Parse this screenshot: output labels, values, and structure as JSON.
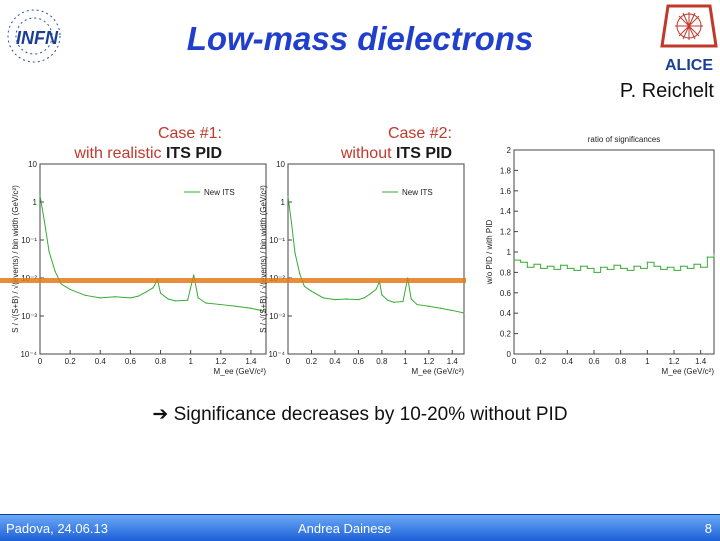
{
  "header": {
    "title": "Low-mass dielectrons",
    "author": "P. Reichelt",
    "infn_logo_text": "INFN",
    "alice_logo_text": "ALICE"
  },
  "colors": {
    "title": "#1f3fcc",
    "highlight": "#e07a1a",
    "curve": "#3aaa35",
    "footer": "#1d5fd8"
  },
  "case1": {
    "line1": "Case #1:",
    "line2_prefix": "with realistic ",
    "line2_bold": "ITS PID"
  },
  "case2": {
    "line1": "Case #2:",
    "line2_prefix": "without ",
    "line2_bold": "ITS PID"
  },
  "chart_data": [
    {
      "type": "line",
      "title": "",
      "ylabel": "S / √(S+B) / √(events) / bin width (GeV/c²)",
      "xlabel": "M_ee (GeV/c²)",
      "legend": "New ITS",
      "yscale": "log",
      "ylim": [
        0.0001,
        10
      ],
      "xlim": [
        0,
        1.5
      ],
      "ytick_labels": [
        "10",
        "1",
        "10⁻¹",
        "10⁻²",
        "10⁻³",
        "10⁻⁴"
      ],
      "xtick_labels": [
        "0",
        "0.2",
        "0.4",
        "0.6",
        "0.8",
        "1",
        "1.2",
        "1.4"
      ],
      "x": [
        0,
        0.03,
        0.06,
        0.1,
        0.14,
        0.2,
        0.3,
        0.4,
        0.5,
        0.6,
        0.65,
        0.7,
        0.75,
        0.78,
        0.8,
        0.85,
        0.9,
        0.98,
        1.02,
        1.05,
        1.1,
        1.2,
        1.3,
        1.4,
        1.5
      ],
      "values": [
        1.5,
        0.3,
        0.05,
        0.015,
        0.007,
        0.005,
        0.0035,
        0.003,
        0.0032,
        0.003,
        0.0033,
        0.0042,
        0.0055,
        0.009,
        0.004,
        0.0028,
        0.0025,
        0.0026,
        0.012,
        0.003,
        0.0022,
        0.002,
        0.0018,
        0.0016,
        0.0013
      ]
    },
    {
      "type": "line",
      "title": "",
      "ylabel": "S / √(S+B) / √(events) / bin width (GeV/c²)",
      "xlabel": "M_ee (GeV/c²)",
      "legend": "New ITS",
      "yscale": "log",
      "ylim": [
        0.0001,
        10
      ],
      "xlim": [
        0,
        1.5
      ],
      "ytick_labels": [
        "10",
        "1",
        "10⁻¹",
        "10⁻²",
        "10⁻³",
        "10⁻⁴"
      ],
      "xtick_labels": [
        "0",
        "0.2",
        "0.4",
        "0.6",
        "0.8",
        "1",
        "1.2",
        "1.4"
      ],
      "x": [
        0,
        0.03,
        0.06,
        0.1,
        0.14,
        0.2,
        0.3,
        0.4,
        0.5,
        0.6,
        0.65,
        0.7,
        0.75,
        0.78,
        0.8,
        0.85,
        0.9,
        0.98,
        1.02,
        1.05,
        1.1,
        1.2,
        1.3,
        1.4,
        1.5
      ],
      "values": [
        1.4,
        0.28,
        0.045,
        0.013,
        0.006,
        0.0045,
        0.003,
        0.0027,
        0.0028,
        0.0027,
        0.003,
        0.0038,
        0.005,
        0.008,
        0.0036,
        0.0026,
        0.0023,
        0.0024,
        0.01,
        0.0028,
        0.002,
        0.0018,
        0.0016,
        0.0014,
        0.0012
      ]
    },
    {
      "type": "line",
      "title": "ratio of significances",
      "ylabel": "w/o PID / with PID",
      "xlabel": "M_ee (GeV/c²)",
      "yscale": "linear",
      "ylim": [
        0,
        2
      ],
      "xlim": [
        0,
        1.5
      ],
      "ytick_labels": [
        "0",
        "0.2",
        "0.4",
        "0.6",
        "0.8",
        "1",
        "1.2",
        "1.4",
        "1.6",
        "1.8",
        "2"
      ],
      "xtick_labels": [
        "0",
        "0.2",
        "0.4",
        "0.6",
        "0.8",
        "1",
        "1.2",
        "1.4"
      ],
      "x": [
        0,
        0.05,
        0.1,
        0.15,
        0.2,
        0.25,
        0.3,
        0.35,
        0.4,
        0.45,
        0.5,
        0.55,
        0.6,
        0.65,
        0.7,
        0.75,
        0.8,
        0.85,
        0.9,
        0.95,
        1.0,
        1.05,
        1.1,
        1.15,
        1.2,
        1.25,
        1.3,
        1.35,
        1.4,
        1.45,
        1.5
      ],
      "values": [
        0.92,
        0.9,
        0.85,
        0.88,
        0.84,
        0.86,
        0.83,
        0.87,
        0.84,
        0.82,
        0.86,
        0.84,
        0.8,
        0.85,
        0.83,
        0.87,
        0.84,
        0.82,
        0.86,
        0.84,
        0.9,
        0.86,
        0.83,
        0.85,
        0.82,
        0.86,
        0.84,
        0.88,
        0.85,
        0.95,
        0.98
      ]
    }
  ],
  "conclusion": {
    "arrow": "➔",
    "text": "Significance decreases by 10-20% without PID"
  },
  "footer": {
    "left": "Padova, 24.06.13",
    "center": "Andrea Dainese",
    "page": "8"
  }
}
